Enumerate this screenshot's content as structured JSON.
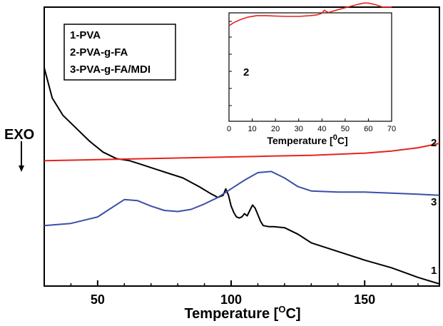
{
  "chart_data": [
    {
      "type": "line",
      "title": "",
      "xlabel": "Temperature [",
      "xlabel_sup": "O",
      "xlabel_unit": "C]",
      "ylabel": "EXO",
      "xlim": [
        30,
        178
      ],
      "ylim": [
        0,
        1
      ],
      "xticks": [
        50,
        100,
        150
      ],
      "grid": false,
      "legend": {
        "placement": "top-left",
        "entries": [
          "1-PVA",
          "2-PVA-g-FA",
          "3-PVA-g-FA/MDI"
        ]
      },
      "series": [
        {
          "name": "1-PVA",
          "end_label": "1",
          "color": "#000000",
          "x": [
            30,
            33,
            37,
            42,
            47,
            52,
            57,
            62,
            67,
            72,
            77,
            82,
            85,
            88,
            92,
            95,
            97,
            98,
            99,
            100,
            101,
            102,
            103,
            104,
            105,
            106,
            107,
            108,
            109,
            110,
            111,
            112,
            114,
            116,
            120,
            125,
            130,
            140,
            150,
            160,
            170,
            178
          ],
          "values": [
            1.0,
            0.86,
            0.78,
            0.72,
            0.66,
            0.61,
            0.58,
            0.57,
            0.55,
            0.53,
            0.51,
            0.49,
            0.47,
            0.45,
            0.42,
            0.4,
            0.41,
            0.44,
            0.41,
            0.36,
            0.33,
            0.31,
            0.305,
            0.31,
            0.325,
            0.315,
            0.34,
            0.365,
            0.35,
            0.32,
            0.29,
            0.27,
            0.265,
            0.265,
            0.26,
            0.23,
            0.19,
            0.15,
            0.11,
            0.075,
            0.03,
            0.0
          ]
        },
        {
          "name": "2-PVA-g-FA",
          "end_label": "2",
          "color": "#e8231c",
          "x": [
            30,
            50,
            70,
            90,
            110,
            130,
            150,
            160,
            170,
            178
          ],
          "values": [
            0.57,
            0.575,
            0.58,
            0.585,
            0.59,
            0.595,
            0.605,
            0.615,
            0.63,
            0.65
          ]
        },
        {
          "name": "3-PVA-g-FA/MDI",
          "end_label": "3",
          "color": "#3b4fa8",
          "x": [
            30,
            40,
            50,
            55,
            60,
            65,
            70,
            75,
            80,
            85,
            90,
            95,
            100,
            105,
            110,
            115,
            120,
            125,
            130,
            140,
            150,
            160,
            170,
            178
          ],
          "values": [
            0.27,
            0.28,
            0.31,
            0.35,
            0.39,
            0.385,
            0.36,
            0.34,
            0.335,
            0.345,
            0.37,
            0.4,
            0.44,
            0.48,
            0.515,
            0.52,
            0.49,
            0.45,
            0.43,
            0.425,
            0.425,
            0.42,
            0.415,
            0.41
          ]
        }
      ]
    },
    {
      "type": "line",
      "title": "",
      "xlabel": "Temperature [",
      "xlabel_sup": "0",
      "xlabel_unit": "C]",
      "ylabel": "",
      "xlim": [
        0,
        70
      ],
      "ylim": [
        0,
        1
      ],
      "xticks": [
        0,
        10,
        20,
        30,
        40,
        50,
        60,
        70
      ],
      "grid": false,
      "series": [
        {
          "name": "2",
          "color": "#e8231c",
          "x": [
            0,
            2,
            5,
            8,
            12,
            16,
            20,
            25,
            30,
            35,
            38,
            40,
            41,
            42,
            43,
            45,
            50,
            55,
            58,
            60,
            63,
            66,
            70
          ],
          "values": [
            0.58,
            0.62,
            0.66,
            0.69,
            0.71,
            0.71,
            0.705,
            0.7,
            0.7,
            0.71,
            0.72,
            0.74,
            0.78,
            0.76,
            0.75,
            0.77,
            0.81,
            0.85,
            0.87,
            0.87,
            0.85,
            0.82,
            0.82
          ]
        }
      ]
    }
  ]
}
